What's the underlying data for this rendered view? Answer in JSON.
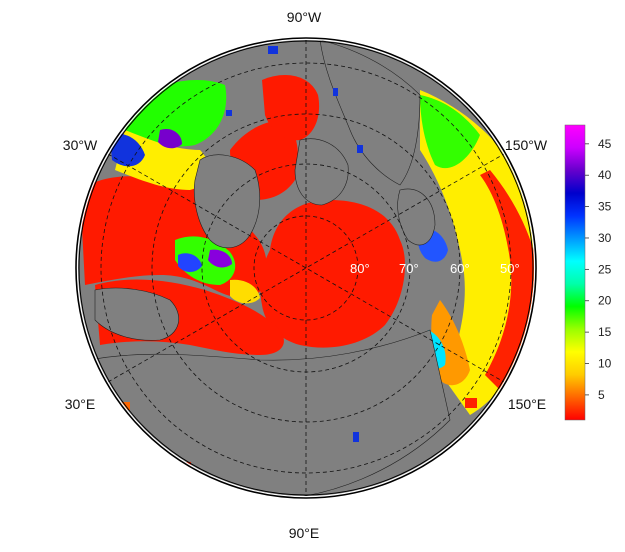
{
  "map": {
    "projection": "north polar stereographic",
    "land_color": "#808080",
    "ocean_border_color": "#000000",
    "graticule_style": "dashed",
    "longitude_labels": {
      "top": "90°W",
      "upper_left": "30°W",
      "upper_right": "150°W",
      "lower_left": "30°E",
      "lower_right": "150°E",
      "bottom": "90°E"
    },
    "latitude_labels": [
      "80°",
      "70°",
      "60°",
      "50°"
    ]
  },
  "colorbar": {
    "colors": [
      "#ff0000",
      "#ff6600",
      "#ffcc00",
      "#ffff00",
      "#99ff00",
      "#00ff00",
      "#00ffaa",
      "#00ffff",
      "#0099ff",
      "#0033ff",
      "#0000cc",
      "#6600cc",
      "#cc00ff",
      "#ff00ff"
    ],
    "ticks": [
      "5",
      "10",
      "15",
      "20",
      "25",
      "30",
      "35",
      "40",
      "45"
    ],
    "tick_values": [
      5,
      10,
      15,
      20,
      25,
      30,
      35,
      40,
      45
    ],
    "range": [
      1,
      48
    ]
  }
}
